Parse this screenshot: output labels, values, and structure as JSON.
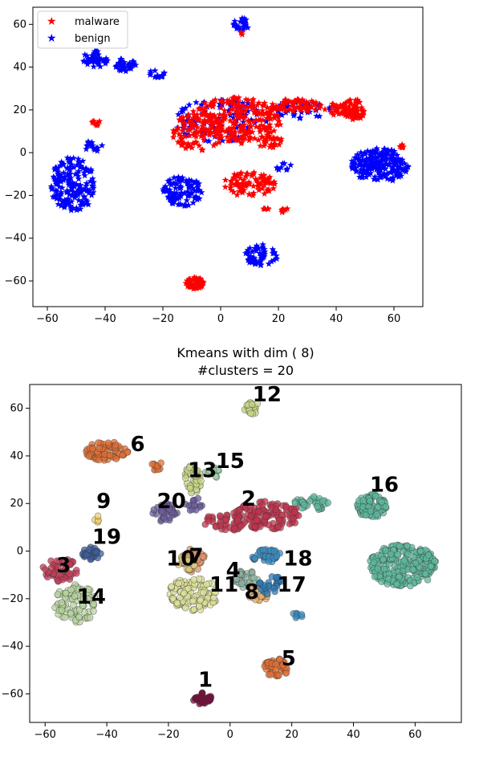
{
  "chart_data": [
    {
      "type": "scatter",
      "title": "",
      "xlim": [
        -65,
        70
      ],
      "ylim": [
        -72,
        68
      ],
      "xticks": [
        -60,
        -40,
        -20,
        0,
        20,
        40,
        60
      ],
      "yticks": [
        -60,
        -40,
        -20,
        0,
        20,
        40,
        60
      ],
      "xtick_labels": [
        "−60",
        "−40",
        "−20",
        "0",
        "20",
        "40",
        "60"
      ],
      "ytick_labels": [
        "−60",
        "−40",
        "−20",
        "0",
        "20",
        "40",
        "60"
      ],
      "legend_position": "top-left",
      "marker": "star",
      "series": [
        {
          "name": "malware",
          "color": "#ff0000",
          "regions": [
            {
              "cx": 5,
              "cy": 15,
              "rx": 16,
              "ry": 11,
              "n": 240
            },
            {
              "cx": -8,
              "cy": 10,
              "rx": 9,
              "ry": 9,
              "n": 90
            },
            {
              "cx": 26,
              "cy": 22,
              "rx": 9,
              "ry": 3,
              "n": 70
            },
            {
              "cx": 40,
              "cy": 20,
              "rx": 4,
              "ry": 3,
              "n": 25
            },
            {
              "cx": 10,
              "cy": -15,
              "rx": 9,
              "ry": 6,
              "n": 90
            },
            {
              "cx": 46,
              "cy": 20,
              "rx": 4,
              "ry": 5,
              "n": 70
            },
            {
              "cx": -43,
              "cy": 14,
              "rx": 1.5,
              "ry": 1.5,
              "n": 10
            },
            {
              "cx": -9,
              "cy": -61,
              "rx": 3.2,
              "ry": 2.8,
              "n": 60
            },
            {
              "cx": 22,
              "cy": -27,
              "rx": 1.5,
              "ry": 1.2,
              "n": 8
            },
            {
              "cx": 16,
              "cy": -26,
              "rx": 1.2,
              "ry": 1,
              "n": 5
            },
            {
              "cx": 17,
              "cy": 5,
              "rx": 5,
              "ry": 3,
              "n": 25
            },
            {
              "cx": 7,
              "cy": 56,
              "rx": 1,
              "ry": 1,
              "n": 3
            },
            {
              "cx": 63,
              "cy": 3,
              "rx": 1.5,
              "ry": 1,
              "n": 6
            }
          ]
        },
        {
          "name": "benign",
          "color": "#0000ff",
          "regions": [
            {
              "cx": -51,
              "cy": -15,
              "rx": 8,
              "ry": 13,
              "n": 180
            },
            {
              "cx": -43,
              "cy": 44,
              "rx": 5,
              "ry": 4,
              "n": 45
            },
            {
              "cx": -33,
              "cy": 41,
              "rx": 4,
              "ry": 3,
              "n": 35
            },
            {
              "cx": -22,
              "cy": 37,
              "rx": 3,
              "ry": 2,
              "n": 15
            },
            {
              "cx": -13,
              "cy": -18,
              "rx": 7,
              "ry": 7,
              "n": 100
            },
            {
              "cx": 55,
              "cy": -6,
              "rx": 10,
              "ry": 8,
              "n": 200
            },
            {
              "cx": 14,
              "cy": -48,
              "rx": 6,
              "ry": 5,
              "n": 60
            },
            {
              "cx": 7,
              "cy": 60,
              "rx": 3,
              "ry": 3,
              "n": 25
            },
            {
              "cx": 0,
              "cy": 15,
              "rx": 16,
              "ry": 10,
              "n": 110
            },
            {
              "cx": 28,
              "cy": 20,
              "rx": 10,
              "ry": 4,
              "n": 40
            },
            {
              "cx": -44,
              "cy": 3,
              "rx": 3,
              "ry": 3,
              "n": 15
            },
            {
              "cx": 22,
              "cy": -7,
              "rx": 3,
              "ry": 2,
              "n": 10
            }
          ]
        }
      ]
    },
    {
      "type": "scatter",
      "title": "Kmeans with dim ( 8)",
      "subtitle": "#clusters = 20",
      "xlim": [
        -65,
        75
      ],
      "ylim": [
        -72,
        70
      ],
      "xticks": [
        -60,
        -40,
        -20,
        0,
        20,
        40,
        60
      ],
      "yticks": [
        -60,
        -40,
        -20,
        0,
        20,
        40,
        60
      ],
      "xtick_labels": [
        "−60",
        "−40",
        "−20",
        "0",
        "20",
        "40",
        "60"
      ],
      "ytick_labels": [
        "−60",
        "−40",
        "−20",
        "0",
        "20",
        "40",
        "60"
      ],
      "marker": "circle",
      "clusters": [
        {
          "label": "1",
          "color": "#7a0f3e",
          "cx": -9,
          "cy": -62,
          "rx": 3,
          "ry": 2.5,
          "n": 40,
          "lx": -8,
          "ly": -57
        },
        {
          "label": "2",
          "color": "#c2344e",
          "cx": 12,
          "cy": 15,
          "rx": 11,
          "ry": 6,
          "n": 130,
          "lx": 6,
          "ly": 19
        },
        {
          "label": "3",
          "color": "#c23b55",
          "cx": -55,
          "cy": -8,
          "rx": 6,
          "ry": 5,
          "n": 50,
          "lx": -54,
          "ly": -9
        },
        {
          "label": "4",
          "color": "#8fb3a0",
          "cx": 5,
          "cy": -12,
          "rx": 4,
          "ry": 4,
          "n": 35,
          "lx": 1,
          "ly": -11
        },
        {
          "label": "5",
          "color": "#e06f34",
          "cx": 15,
          "cy": -49,
          "rx": 4,
          "ry": 4,
          "n": 45,
          "lx": 19,
          "ly": -48
        },
        {
          "label": "6",
          "color": "#e06f34",
          "cx": -40,
          "cy": 42,
          "rx": 7,
          "ry": 4,
          "n": 70,
          "lx": -30,
          "ly": 42
        },
        {
          "label": "7",
          "color": "#e0906a",
          "cx": -12,
          "cy": -4,
          "rx": 4,
          "ry": 5,
          "n": 30,
          "lx": -11,
          "ly": -5
        },
        {
          "label": "8",
          "color": "#e8b06a",
          "cx": 9,
          "cy": -18,
          "rx": 4,
          "ry": 3,
          "n": 25,
          "lx": 7,
          "ly": -20
        },
        {
          "label": "9",
          "color": "#f0d070",
          "cx": -43,
          "cy": 13,
          "rx": 1,
          "ry": 2,
          "n": 5,
          "lx": -41,
          "ly": 18
        },
        {
          "label": "10",
          "color": "#d8c878",
          "cx": -14,
          "cy": -5,
          "rx": 3,
          "ry": 3,
          "n": 20,
          "lx": -16,
          "ly": -6
        },
        {
          "label": "11",
          "color": "#dde29a",
          "cx": -12,
          "cy": -18,
          "rx": 8,
          "ry": 7,
          "n": 110,
          "lx": -2,
          "ly": -17
        },
        {
          "label": "12",
          "color": "#c8d88a",
          "cx": 7,
          "cy": 60,
          "rx": 2.5,
          "ry": 3,
          "n": 20,
          "lx": 12,
          "ly": 63
        },
        {
          "label": "13",
          "color": "#c8d88a",
          "cx": -12,
          "cy": 30,
          "rx": 3,
          "ry": 6,
          "n": 40,
          "lx": -9,
          "ly": 31
        },
        {
          "label": "14",
          "color": "#b8d4a0",
          "cx": -50,
          "cy": -22,
          "rx": 7,
          "ry": 8,
          "n": 90,
          "lx": -45,
          "ly": -22
        },
        {
          "label": "15",
          "color": "#9ccca8",
          "cx": -5,
          "cy": 33,
          "rx": 3,
          "ry": 2,
          "n": 15,
          "lx": 0,
          "ly": 35
        },
        {
          "label": "16",
          "color": "#5fb89e",
          "cx": 46,
          "cy": 19,
          "rx": 5,
          "ry": 5,
          "n": 80,
          "lx": 50,
          "ly": 25
        },
        {
          "label": "17",
          "color": "#2d7bb6",
          "cx": 13,
          "cy": -14,
          "rx": 4,
          "ry": 4,
          "n": 30,
          "lx": 20,
          "ly": -17
        },
        {
          "label": "18",
          "color": "#3b8cc0",
          "cx": 12,
          "cy": -2,
          "rx": 5,
          "ry": 3,
          "n": 40,
          "lx": 22,
          "ly": -6
        },
        {
          "label": "19",
          "color": "#3d5c9a",
          "cx": -45,
          "cy": -1,
          "rx": 3,
          "ry": 3,
          "n": 30,
          "lx": -40,
          "ly": 3
        },
        {
          "label": "20",
          "color": "#6b5c9c",
          "cx": -21,
          "cy": 16,
          "rx": 4,
          "ry": 4,
          "n": 40,
          "lx": -19,
          "ly": 18
        },
        {
          "label": "",
          "color": "#5fb89e",
          "cx": 56,
          "cy": -6,
          "rx": 11,
          "ry": 9,
          "n": 240,
          "lx": null,
          "ly": null
        },
        {
          "label": "",
          "color": "#5fb89e",
          "cx": 26,
          "cy": 20,
          "rx": 6,
          "ry": 3,
          "n": 40,
          "lx": null,
          "ly": null
        },
        {
          "label": "",
          "color": "#3b8cc0",
          "cx": 22,
          "cy": -27,
          "rx": 2,
          "ry": 1.2,
          "n": 8,
          "lx": null,
          "ly": null
        },
        {
          "label": "",
          "color": "#c2344e",
          "cx": -2,
          "cy": 12,
          "rx": 7,
          "ry": 4,
          "n": 40,
          "lx": null,
          "ly": null
        },
        {
          "label": "",
          "color": "#e06f34",
          "cx": -24,
          "cy": 36,
          "rx": 2,
          "ry": 2,
          "n": 10,
          "lx": null,
          "ly": null
        },
        {
          "label": "",
          "color": "#6b5c9c",
          "cx": -12,
          "cy": 20,
          "rx": 3,
          "ry": 3,
          "n": 15,
          "lx": null,
          "ly": null
        }
      ]
    }
  ],
  "legend": {
    "items": [
      {
        "label": "malware",
        "color": "#ff0000"
      },
      {
        "label": "benign",
        "color": "#0000ff"
      }
    ]
  }
}
